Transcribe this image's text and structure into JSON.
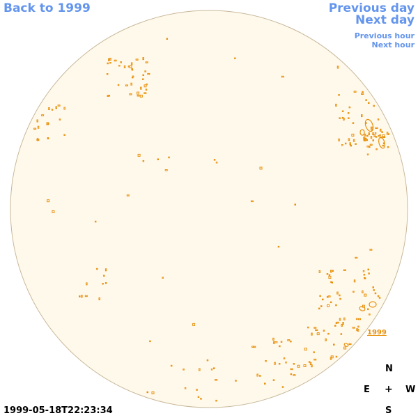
{
  "nav": {
    "back": "Back to 1999",
    "previous_day": "Previous day",
    "next_day": "Next day",
    "previous_hour": "Previous hour",
    "next_hour": "Next hour"
  },
  "disk": {
    "fill_color": "#fff9ec",
    "edge_color": "#c8b89a",
    "contour_color": "#e8900a",
    "year_label": "1999"
  },
  "timestamp": "1999-05-18T22:23:34",
  "compass": {
    "north": "N",
    "east": "E",
    "west": "W",
    "south": "S",
    "center": "+"
  }
}
